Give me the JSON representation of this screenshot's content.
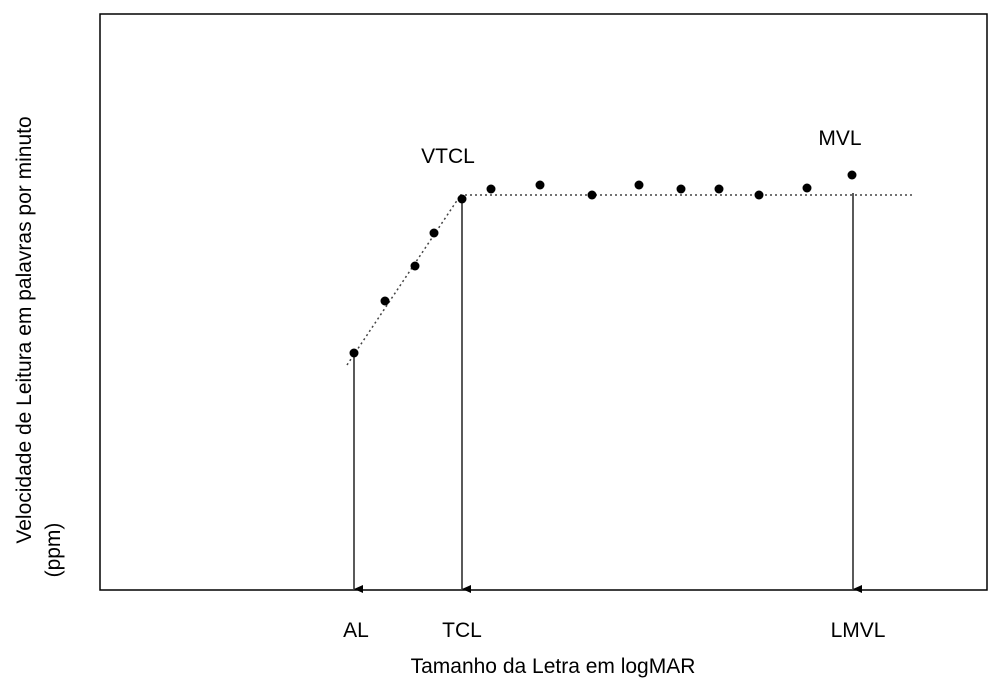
{
  "chart_data": {
    "type": "scatter",
    "title": "",
    "xlabel": "Tamanho da Letra em logMAR",
    "ylabel_line1": "Velocidade de Leitura em palavras por minuto",
    "ylabel_line2": "(ppm)",
    "x_ticks": [
      {
        "label": "AL"
      },
      {
        "label": "TCL"
      },
      {
        "label": "LMVL"
      }
    ],
    "annotations": {
      "vtcl": "VTCL",
      "mvl": "MVL"
    },
    "point_color": "#000000",
    "fit_line_style": "dotted",
    "grid": false,
    "legend": "none"
  }
}
